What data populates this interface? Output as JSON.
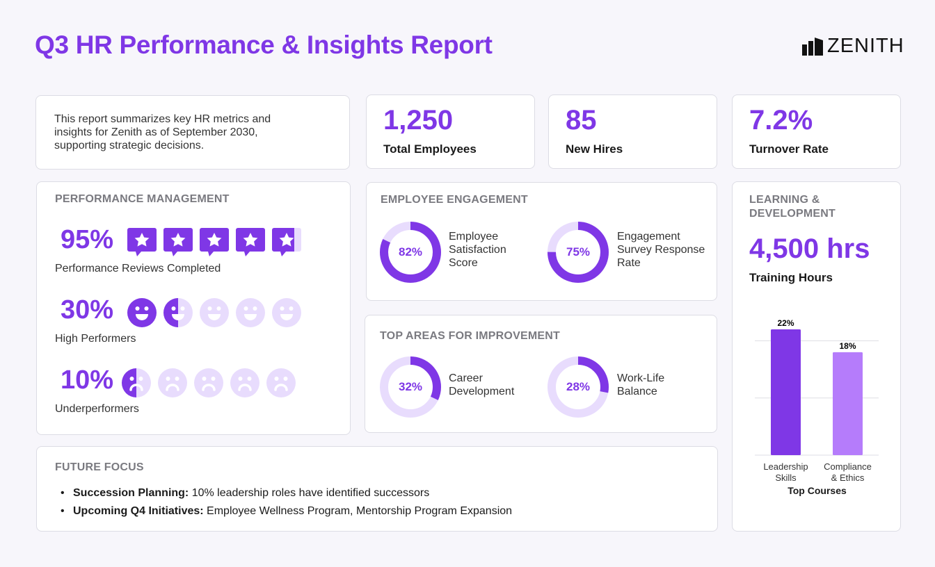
{
  "header": {
    "title": "Q3 HR Performance & Insights Report",
    "logo_text": "ZENITH"
  },
  "intro": {
    "text": "This report summarizes key HR metrics and insights for Zenith as of September 2030, supporting strategic decisions."
  },
  "stats": [
    {
      "value": "1,250",
      "label": "Total Employees"
    },
    {
      "value": "85",
      "label": "New Hires"
    },
    {
      "value": "7.2%",
      "label": "Turnover Rate"
    }
  ],
  "performance": {
    "heading": "PERFORMANCE MANAGEMENT",
    "rows": [
      {
        "value": "95%",
        "percent": 95,
        "label": "Performance Reviews Completed",
        "icon": "star-review-icon"
      },
      {
        "value": "30%",
        "percent": 30,
        "label": "High Performers",
        "icon": "happy-face-icon"
      },
      {
        "value": "10%",
        "percent": 10,
        "label": "Underperformers",
        "icon": "sad-face-icon"
      }
    ]
  },
  "engagement": {
    "heading": "EMPLOYEE ENGAGEMENT",
    "items": [
      {
        "value": "82%",
        "percent": 82,
        "label": "Employee Satisfaction Score"
      },
      {
        "value": "75%",
        "percent": 75,
        "label": "Engagement Survey Response Rate"
      }
    ]
  },
  "improvement": {
    "heading": "TOP AREAS FOR IMPROVEMENT",
    "items": [
      {
        "value": "32%",
        "percent": 32,
        "label": "Career Development"
      },
      {
        "value": "28%",
        "percent": 28,
        "label": "Work-Life Balance"
      }
    ]
  },
  "learning": {
    "heading": "LEARNING & DEVELOPMENT",
    "value": "4,500 hrs",
    "label": "Training Hours"
  },
  "chart_data": {
    "type": "bar",
    "categories": [
      "Leadership Skills",
      "Compliance & Ethics"
    ],
    "values": [
      22,
      18
    ],
    "data_labels": [
      "22%",
      "18%"
    ],
    "xlabel": "Top Courses",
    "ylim": [
      0,
      22
    ],
    "grid": true,
    "colors": [
      "#7f37e6",
      "#b57cfb"
    ]
  },
  "future": {
    "heading": "FUTURE FOCUS",
    "items": [
      {
        "bold": "Succession Planning:",
        "text": " 10% leadership roles have identified successors"
      },
      {
        "bold": "Upcoming Q4 Initiatives:",
        "text": " Employee Wellness Program, Mentorship Program Expansion"
      }
    ]
  },
  "colors": {
    "accent": "#7f37e6",
    "accent_light": "#e8dcfd",
    "bar2": "#b57cfb"
  }
}
